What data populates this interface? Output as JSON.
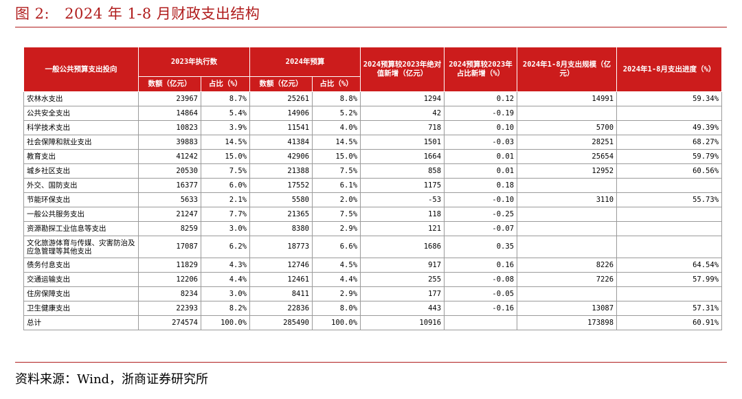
{
  "title": {
    "figure": "图 2:",
    "text": "2024 年 1-8 月财政支出结构"
  },
  "headers": {
    "category": "一般公共预算支出投向",
    "exec_2023": "2023年执行数",
    "budget_2024": "2024年预算",
    "abs_change": "2024预算较2023年绝对值新增（亿元）",
    "share_change": "2024预算较2023年占比新增（%）",
    "scale_1_8": "2024年1-8月支出规模（亿元）",
    "progress_1_8": "2024年1-8月支出进度（%）",
    "amount": "数额（亿元）",
    "share": "占比（%）",
    "amount2": "数额（亿元）",
    "share2": "占比（%）"
  },
  "rows": [
    {
      "name": "农林水支出",
      "a23": "23967",
      "s23": "8.7%",
      "a24": "25261",
      "s24": "8.8%",
      "abs": "1294",
      "pct": "0.12",
      "scale": "14991",
      "prog": "59.34%"
    },
    {
      "name": "公共安全支出",
      "a23": "14864",
      "s23": "5.4%",
      "a24": "14906",
      "s24": "5.2%",
      "abs": "42",
      "pct": "-0.19",
      "scale": "",
      "prog": ""
    },
    {
      "name": "科学技术支出",
      "a23": "10823",
      "s23": "3.9%",
      "a24": "11541",
      "s24": "4.0%",
      "abs": "718",
      "pct": "0.10",
      "scale": "5700",
      "prog": "49.39%"
    },
    {
      "name": "社会保障和就业支出",
      "a23": "39883",
      "s23": "14.5%",
      "a24": "41384",
      "s24": "14.5%",
      "abs": "1501",
      "pct": "-0.03",
      "scale": "28251",
      "prog": "68.27%"
    },
    {
      "name": "教育支出",
      "a23": "41242",
      "s23": "15.0%",
      "a24": "42906",
      "s24": "15.0%",
      "abs": "1664",
      "pct": "0.01",
      "scale": "25654",
      "prog": "59.79%"
    },
    {
      "name": "城乡社区支出",
      "a23": "20530",
      "s23": "7.5%",
      "a24": "21388",
      "s24": "7.5%",
      "abs": "858",
      "pct": "0.01",
      "scale": "12952",
      "prog": "60.56%"
    },
    {
      "name": "外交、国防支出",
      "a23": "16377",
      "s23": "6.0%",
      "a24": "17552",
      "s24": "6.1%",
      "abs": "1175",
      "pct": "0.18",
      "scale": "",
      "prog": ""
    },
    {
      "name": "节能环保支出",
      "a23": "5633",
      "s23": "2.1%",
      "a24": "5580",
      "s24": "2.0%",
      "abs": "-53",
      "pct": "-0.10",
      "scale": "3110",
      "prog": "55.73%"
    },
    {
      "name": "一般公共服务支出",
      "a23": "21247",
      "s23": "7.7%",
      "a24": "21365",
      "s24": "7.5%",
      "abs": "118",
      "pct": "-0.25",
      "scale": "",
      "prog": ""
    },
    {
      "name": "资源勘探工业信息等支出",
      "a23": "8259",
      "s23": "3.0%",
      "a24": "8380",
      "s24": "2.9%",
      "abs": "121",
      "pct": "-0.07",
      "scale": "",
      "prog": ""
    },
    {
      "name": "文化旅游体育与传媒、灾害防治及应急管理等其他支出",
      "a23": "17087",
      "s23": "6.2%",
      "a24": "18773",
      "s24": "6.6%",
      "abs": "1686",
      "pct": "0.35",
      "scale": "",
      "prog": ""
    },
    {
      "name": "债务付息支出",
      "a23": "11829",
      "s23": "4.3%",
      "a24": "12746",
      "s24": "4.5%",
      "abs": "917",
      "pct": "0.16",
      "scale": "8226",
      "prog": "64.54%"
    },
    {
      "name": "交通运输支出",
      "a23": "12206",
      "s23": "4.4%",
      "a24": "12461",
      "s24": "4.4%",
      "abs": "255",
      "pct": "-0.08",
      "scale": "7226",
      "prog": "57.99%"
    },
    {
      "name": "住房保障支出",
      "a23": "8234",
      "s23": "3.0%",
      "a24": "8411",
      "s24": "2.9%",
      "abs": "177",
      "pct": "-0.05",
      "scale": "",
      "prog": ""
    },
    {
      "name": "卫生健康支出",
      "a23": "22393",
      "s23": "8.2%",
      "a24": "22836",
      "s24": "8.0%",
      "abs": "443",
      "pct": "-0.16",
      "scale": "13087",
      "prog": "57.31%"
    },
    {
      "name": "总计",
      "a23": "274574",
      "s23": "100.0%",
      "a24": "285490",
      "s24": "100.0%",
      "abs": "10916",
      "pct": "",
      "scale": "173898",
      "prog": "60.91%"
    }
  ],
  "source": "资料来源：Wind，浙商证券研究所",
  "colors": {
    "accent": "#b01c1c",
    "header_bg": "#cc1c1c",
    "grid": "#9a9a9a"
  }
}
